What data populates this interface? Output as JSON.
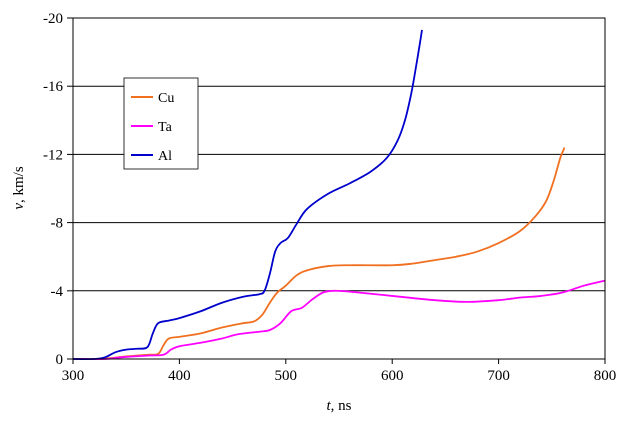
{
  "chart_data": {
    "type": "line",
    "title": "",
    "xlabel": {
      "var": "t",
      "unit": ", ns"
    },
    "ylabel": {
      "var": "v",
      "unit": ", km/s"
    },
    "xlim": [
      300,
      800
    ],
    "ylim": [
      0,
      -20
    ],
    "y_axis_inverted": true,
    "grid": {
      "horizontal": true,
      "vertical": false
    },
    "legend_position": "upper-left inside plot",
    "x_ticks": [
      300,
      400,
      500,
      600,
      700,
      800
    ],
    "x_tick_labels": [
      "300",
      "400",
      "500",
      "600",
      "700",
      "800"
    ],
    "y_ticks": [
      0,
      -4,
      -8,
      -12,
      -16,
      -20
    ],
    "y_tick_labels": [
      "0",
      "-4",
      "-8",
      "-12",
      "-16",
      "-20"
    ],
    "series": [
      {
        "name": "Cu",
        "color": "#f07020",
        "points": [
          [
            300,
            0
          ],
          [
            320,
            0
          ],
          [
            335,
            -0.05
          ],
          [
            350,
            -0.15
          ],
          [
            370,
            -0.25
          ],
          [
            380,
            -0.3
          ],
          [
            385,
            -0.8
          ],
          [
            390,
            -1.2
          ],
          [
            400,
            -1.3
          ],
          [
            420,
            -1.5
          ],
          [
            440,
            -1.85
          ],
          [
            460,
            -2.1
          ],
          [
            470,
            -2.2
          ],
          [
            478,
            -2.6
          ],
          [
            485,
            -3.3
          ],
          [
            492,
            -3.9
          ],
          [
            500,
            -4.3
          ],
          [
            510,
            -4.9
          ],
          [
            520,
            -5.2
          ],
          [
            540,
            -5.45
          ],
          [
            560,
            -5.5
          ],
          [
            600,
            -5.5
          ],
          [
            620,
            -5.6
          ],
          [
            640,
            -5.8
          ],
          [
            660,
            -6.0
          ],
          [
            680,
            -6.3
          ],
          [
            700,
            -6.8
          ],
          [
            720,
            -7.5
          ],
          [
            735,
            -8.4
          ],
          [
            745,
            -9.3
          ],
          [
            752,
            -10.5
          ],
          [
            758,
            -11.8
          ],
          [
            762,
            -12.4
          ]
        ]
      },
      {
        "name": "Ta",
        "color": "#ff00ff",
        "points": [
          [
            300,
            0
          ],
          [
            330,
            0
          ],
          [
            345,
            -0.1
          ],
          [
            370,
            -0.2
          ],
          [
            385,
            -0.25
          ],
          [
            392,
            -0.55
          ],
          [
            400,
            -0.75
          ],
          [
            420,
            -0.95
          ],
          [
            440,
            -1.2
          ],
          [
            455,
            -1.45
          ],
          [
            475,
            -1.6
          ],
          [
            485,
            -1.7
          ],
          [
            495,
            -2.1
          ],
          [
            505,
            -2.8
          ],
          [
            515,
            -3.0
          ],
          [
            525,
            -3.5
          ],
          [
            535,
            -3.9
          ],
          [
            545,
            -4.0
          ],
          [
            560,
            -3.95
          ],
          [
            600,
            -3.7
          ],
          [
            640,
            -3.45
          ],
          [
            670,
            -3.35
          ],
          [
            700,
            -3.45
          ],
          [
            720,
            -3.6
          ],
          [
            740,
            -3.7
          ],
          [
            760,
            -3.9
          ],
          [
            780,
            -4.3
          ],
          [
            800,
            -4.6
          ]
        ]
      },
      {
        "name": "Al",
        "color": "#0000cc",
        "points": [
          [
            300,
            0
          ],
          [
            320,
            0
          ],
          [
            330,
            -0.1
          ],
          [
            340,
            -0.4
          ],
          [
            350,
            -0.55
          ],
          [
            360,
            -0.6
          ],
          [
            370,
            -0.7
          ],
          [
            375,
            -1.5
          ],
          [
            380,
            -2.1
          ],
          [
            390,
            -2.25
          ],
          [
            400,
            -2.4
          ],
          [
            420,
            -2.8
          ],
          [
            440,
            -3.3
          ],
          [
            460,
            -3.65
          ],
          [
            475,
            -3.8
          ],
          [
            480,
            -4.0
          ],
          [
            485,
            -5.0
          ],
          [
            490,
            -6.3
          ],
          [
            495,
            -6.8
          ],
          [
            502,
            -7.1
          ],
          [
            510,
            -7.9
          ],
          [
            520,
            -8.8
          ],
          [
            540,
            -9.7
          ],
          [
            560,
            -10.3
          ],
          [
            580,
            -11.0
          ],
          [
            595,
            -11.8
          ],
          [
            605,
            -12.8
          ],
          [
            612,
            -14.0
          ],
          [
            618,
            -15.6
          ],
          [
            622,
            -17.0
          ],
          [
            626,
            -18.5
          ],
          [
            628,
            -19.3
          ]
        ]
      }
    ]
  }
}
